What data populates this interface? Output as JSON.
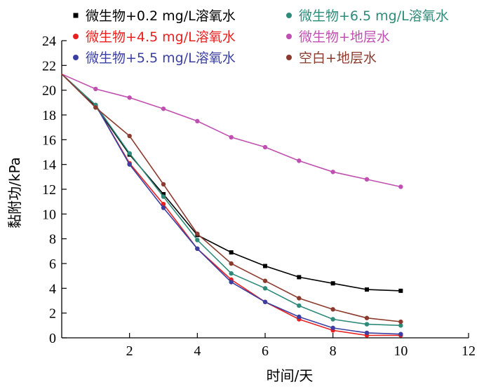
{
  "chart_data": {
    "type": "line",
    "title": "",
    "xlabel": "时间/天",
    "ylabel": "黏附功/kPa",
    "xlim": [
      0,
      12
    ],
    "ylim": [
      0,
      24
    ],
    "xticks": [
      2,
      4,
      6,
      8,
      10,
      12
    ],
    "yticks": [
      0,
      2,
      4,
      6,
      8,
      10,
      12,
      14,
      16,
      18,
      20,
      22,
      24
    ],
    "grid": false,
    "legend_position": "top",
    "x": [
      0,
      1,
      2,
      3,
      4,
      5,
      6,
      7,
      8,
      9,
      10
    ],
    "series": [
      {
        "name": "微生物+0.2 mg/L溶氧水",
        "color": "#000000",
        "marker": "square",
        "values": [
          21.3,
          18.7,
          14.8,
          11.6,
          8.3,
          6.9,
          5.8,
          4.9,
          4.4,
          3.9,
          3.8
        ]
      },
      {
        "name": "微生物+4.5 mg/L溶氧水",
        "color": "#e8201f",
        "marker": "circle",
        "values": [
          21.3,
          18.8,
          14.1,
          10.8,
          7.2,
          4.7,
          2.9,
          1.5,
          0.6,
          0.2,
          0.2
        ]
      },
      {
        "name": "微生物+5.5 mg/L溶氧水",
        "color": "#3b3fa0",
        "marker": "circle",
        "values": [
          21.3,
          18.8,
          14.0,
          10.5,
          7.2,
          4.5,
          2.9,
          1.7,
          0.8,
          0.4,
          0.3
        ]
      },
      {
        "name": "微生物+6.5 mg/L溶氧水",
        "color": "#2e8b7a",
        "marker": "circle",
        "values": [
          21.3,
          18.8,
          14.9,
          11.4,
          7.9,
          5.2,
          4.0,
          2.6,
          1.5,
          1.1,
          1.0
        ]
      },
      {
        "name": "微生物+地层水",
        "color": "#c050b0",
        "marker": "circle",
        "values": [
          21.3,
          20.1,
          19.4,
          18.5,
          17.5,
          16.2,
          15.4,
          14.3,
          13.4,
          12.8,
          12.2
        ]
      },
      {
        "name": "空白+地层水",
        "color": "#8b3a2e",
        "marker": "circle",
        "values": [
          21.3,
          18.6,
          16.3,
          12.4,
          8.4,
          6.0,
          4.6,
          3.2,
          2.3,
          1.6,
          1.3
        ]
      }
    ]
  }
}
